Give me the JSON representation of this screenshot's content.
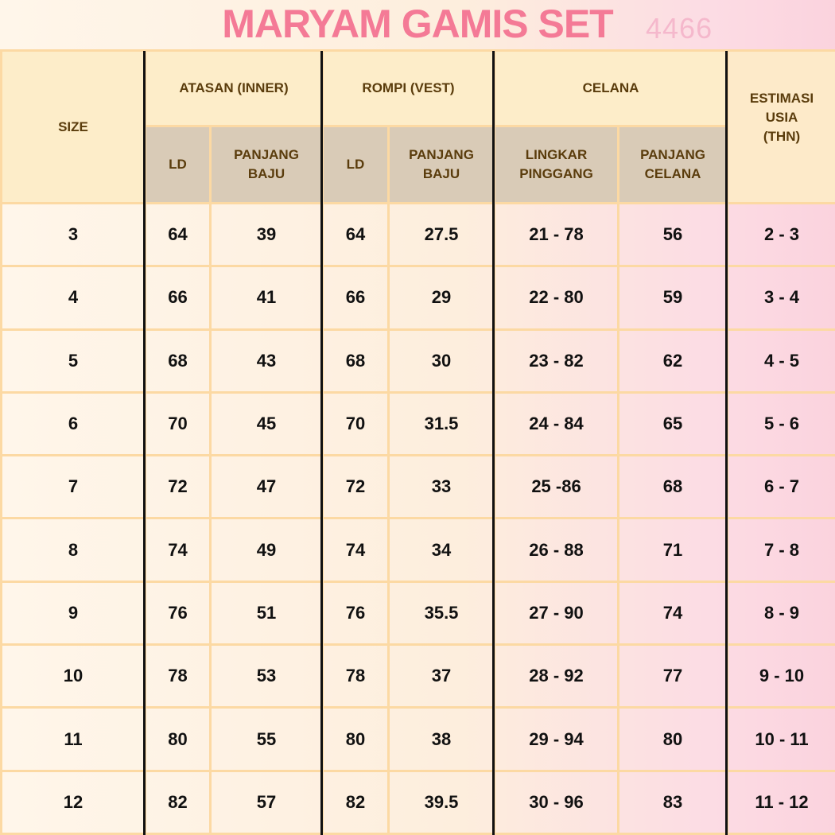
{
  "title": "MARYAM GAMIS SET",
  "code": "4466",
  "headers": {
    "size": "SIZE",
    "groups": [
      "ATASAN (INNER)",
      "ROMPI (VEST)",
      "CELANA"
    ],
    "estimasi": [
      "ESTIMASI",
      "USIA",
      "(THN)"
    ],
    "sub": [
      [
        "LD"
      ],
      [
        "PANJANG",
        "BAJU"
      ],
      [
        "LD"
      ],
      [
        "PANJANG",
        "BAJU"
      ],
      [
        "LINGKAR",
        "PINGGANG"
      ],
      [
        "PANJANG",
        "CELANA"
      ]
    ]
  },
  "rows": [
    [
      "3",
      "64",
      "39",
      "64",
      "27.5",
      "21 - 78",
      "56",
      "2 - 3"
    ],
    [
      "4",
      "66",
      "41",
      "66",
      "29",
      "22 - 80",
      "59",
      "3 - 4"
    ],
    [
      "5",
      "68",
      "43",
      "68",
      "30",
      "23 - 82",
      "62",
      "4 - 5"
    ],
    [
      "6",
      "70",
      "45",
      "70",
      "31.5",
      "24 - 84",
      "65",
      "5 - 6"
    ],
    [
      "7",
      "72",
      "47",
      "72",
      "33",
      "25 -86",
      "68",
      "6 - 7"
    ],
    [
      "8",
      "74",
      "49",
      "74",
      "34",
      "26 - 88",
      "71",
      "7 - 8"
    ],
    [
      "9",
      "76",
      "51",
      "76",
      "35.5",
      "27 - 90",
      "74",
      "8 - 9"
    ],
    [
      "10",
      "78",
      "53",
      "78",
      "37",
      "28 - 92",
      "77",
      "9 - 10"
    ],
    [
      "11",
      "80",
      "55",
      "80",
      "38",
      "29 - 94",
      "80",
      "10 - 11"
    ],
    [
      "12",
      "82",
      "57",
      "82",
      "39.5",
      "30 - 96",
      "83",
      "11 - 12"
    ]
  ],
  "colors": {
    "title": "#f47a96",
    "code": "#f5b8cc",
    "header_bg": "#fdedc9",
    "subheader_bg": "#d9cbb7",
    "grid": "#fcd9a3",
    "header_text": "#5a3c0c"
  }
}
